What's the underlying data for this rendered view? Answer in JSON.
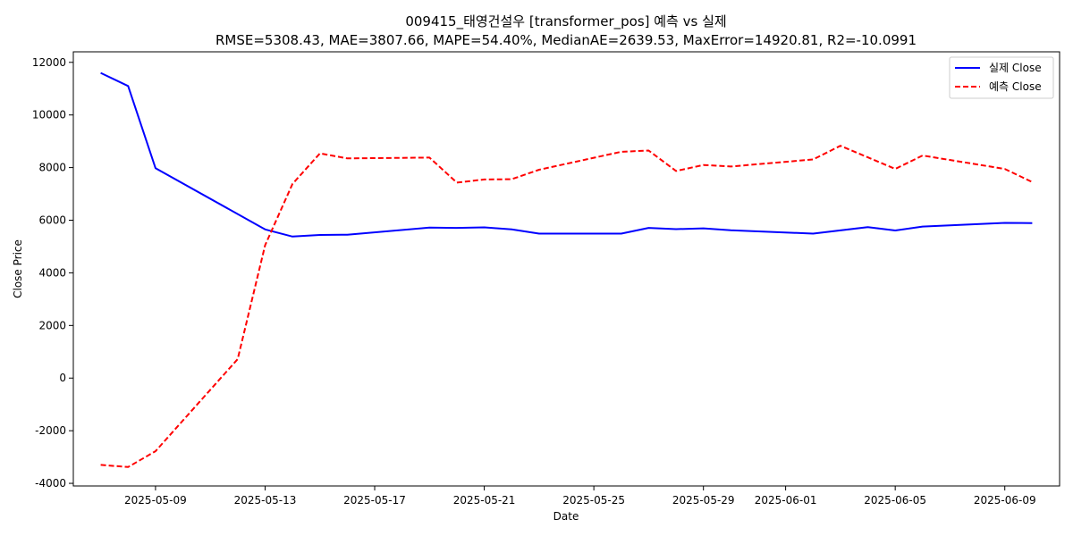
{
  "chart_data": {
    "type": "line",
    "title": "009415_태영건설우 [transformer_pos] 예측 vs 실제",
    "subtitle": "RMSE=5308.43, MAE=3807.66, MAPE=54.40%, MedianAE=2639.53, MaxError=14920.81, R2=-10.0991",
    "xlabel": "Date",
    "ylabel": "Close Price",
    "ylim": [
      -4100,
      12400
    ],
    "xlim": [
      "2025-05-06",
      "2025-06-11"
    ],
    "grid": false,
    "legend_position": "top-right",
    "x_ticks": [
      "2025-05-09",
      "2025-05-13",
      "2025-05-17",
      "2025-05-21",
      "2025-05-25",
      "2025-05-29",
      "2025-06-01",
      "2025-06-05",
      "2025-06-09"
    ],
    "y_ticks": [
      -4000,
      -2000,
      0,
      2000,
      4000,
      6000,
      8000,
      10000,
      12000
    ],
    "series": [
      {
        "name": "실제 Close",
        "color": "#0000ff",
        "style": "solid",
        "x": [
          "2025-05-07",
          "2025-05-08",
          "2025-05-09",
          "2025-05-13",
          "2025-05-14",
          "2025-05-15",
          "2025-05-16",
          "2025-05-19",
          "2025-05-20",
          "2025-05-21",
          "2025-05-22",
          "2025-05-23",
          "2025-05-26",
          "2025-05-27",
          "2025-05-28",
          "2025-05-29",
          "2025-05-30",
          "2025-06-02",
          "2025-06-04",
          "2025-06-05",
          "2025-06-06",
          "2025-06-09",
          "2025-06-10"
        ],
        "values": [
          11600,
          11100,
          7980,
          5650,
          5380,
          5440,
          5450,
          5720,
          5710,
          5730,
          5650,
          5490,
          5490,
          5710,
          5660,
          5690,
          5620,
          5490,
          5740,
          5610,
          5760,
          5900,
          5890
        ]
      },
      {
        "name": "예측 Close",
        "color": "#ff0000",
        "style": "dashed",
        "x": [
          "2025-05-07",
          "2025-05-08",
          "2025-05-09",
          "2025-05-12",
          "2025-05-13",
          "2025-05-14",
          "2025-05-15",
          "2025-05-16",
          "2025-05-19",
          "2025-05-20",
          "2025-05-21",
          "2025-05-22",
          "2025-05-23",
          "2025-05-26",
          "2025-05-27",
          "2025-05-28",
          "2025-05-29",
          "2025-05-30",
          "2025-06-02",
          "2025-06-03",
          "2025-06-04",
          "2025-06-05",
          "2025-06-06",
          "2025-06-09",
          "2025-06-10"
        ],
        "values": [
          -3300,
          -3380,
          -2780,
          720,
          5050,
          7380,
          8540,
          8350,
          8380,
          7430,
          7550,
          7560,
          7920,
          8600,
          8650,
          7870,
          8100,
          8040,
          8310,
          8830,
          8390,
          7950,
          8460,
          7950,
          7450
        ]
      }
    ]
  }
}
